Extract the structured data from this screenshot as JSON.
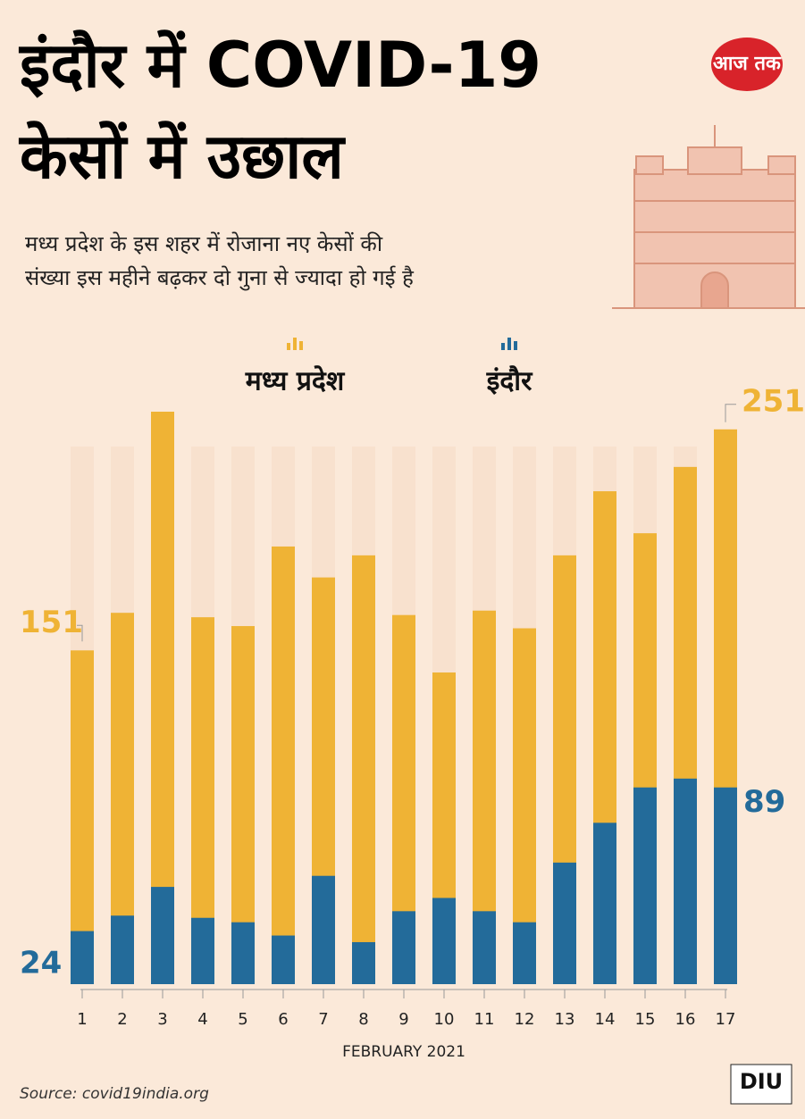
{
  "chart_data": {
    "type": "bar",
    "title": [
      "इंदौर में COVID-19",
      "केसों में उछाल"
    ],
    "subtitle": [
      "मध्य प्रदेश के इस शहर में रोजाना नए केसों की",
      "संख्या इस महीने बढ़कर दो गुना से ज्यादा हो गई है"
    ],
    "x_label": "FEBRUARY 2021",
    "categories": [
      "1",
      "2",
      "3",
      "4",
      "5",
      "6",
      "7",
      "8",
      "9",
      "10",
      "11",
      "12",
      "13",
      "14",
      "15",
      "16",
      "17"
    ],
    "series": [
      {
        "name": "मध्य प्रदेश",
        "color": "#efb335",
        "values": [
          151,
          168,
          259,
          166,
          162,
          198,
          184,
          194,
          167,
          141,
          169,
          161,
          194,
          223,
          204,
          234,
          251
        ]
      },
      {
        "name": "इंदौर",
        "color": "#236b9a",
        "values": [
          24,
          31,
          44,
          30,
          28,
          22,
          49,
          19,
          33,
          39,
          33,
          28,
          55,
          73,
          89,
          93,
          89
        ]
      }
    ],
    "ylim": [
      0,
      260
    ],
    "source": "Source: covid19india.org",
    "logo": "आज तक",
    "logo2": "DIU"
  }
}
